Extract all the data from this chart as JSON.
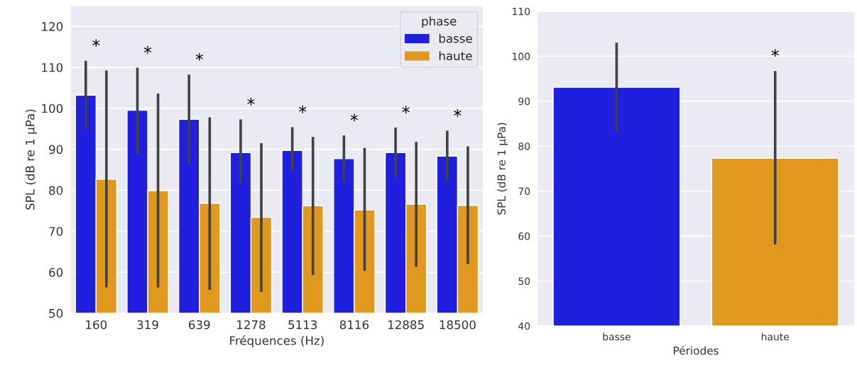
{
  "chart_data": [
    {
      "type": "bar",
      "xlabel": "Fréquences (Hz)",
      "ylabel": "SPL (dB re 1 µPa)",
      "legend_title": "phase",
      "legend": "top right",
      "grid": "y",
      "categories": [
        "160",
        "319",
        "639",
        "1278",
        "5113",
        "8116",
        "12885",
        "18500"
      ],
      "ylim": [
        50,
        125
      ],
      "yticks": [
        50,
        60,
        70,
        80,
        90,
        100,
        110,
        120
      ],
      "series": [
        {
          "name": "basse",
          "color": "#1f1fdd",
          "values": [
            103.2,
            99.5,
            97.3,
            89.2,
            89.7,
            87.7,
            89.2,
            88.3
          ],
          "errors": [
            [
              94.9,
              111.6
            ],
            [
              88.8,
              109.9
            ],
            [
              86.5,
              108.2
            ],
            [
              81.7,
              97.3
            ],
            [
              84.5,
              95.4
            ],
            [
              82.0,
              93.4
            ],
            [
              83.2,
              95.3
            ],
            [
              82.1,
              94.5
            ]
          ]
        },
        {
          "name": "haute",
          "color": "#e0981f",
          "values": [
            82.7,
            79.9,
            76.8,
            73.4,
            76.2,
            75.2,
            76.6,
            76.3
          ],
          "errors": [
            [
              56.3,
              109.2
            ],
            [
              56.3,
              103.6
            ],
            [
              55.7,
              97.8
            ],
            [
              55.2,
              91.5
            ],
            [
              59.3,
              93.0
            ],
            [
              60.3,
              90.3
            ],
            [
              61.3,
              91.8
            ],
            [
              62.0,
              90.7
            ]
          ]
        }
      ],
      "annotations": [
        "*",
        "*",
        "*",
        "*",
        "*",
        "*",
        "*",
        "*"
      ]
    },
    {
      "type": "bar",
      "xlabel": "Périodes",
      "ylabel": "SPL (dB re 1 µPa)",
      "grid": "y",
      "categories": [
        "basse",
        "haute"
      ],
      "ylim": [
        40,
        110
      ],
      "yticks": [
        40,
        50,
        60,
        70,
        80,
        90,
        100,
        110
      ],
      "values": [
        93.1,
        77.3
      ],
      "colors": [
        "#1f1fdd",
        "#e0981f"
      ],
      "errors": [
        [
          83.4,
          103.0
        ],
        [
          58.1,
          96.7
        ]
      ],
      "annotations": [
        "*"
      ]
    }
  ]
}
